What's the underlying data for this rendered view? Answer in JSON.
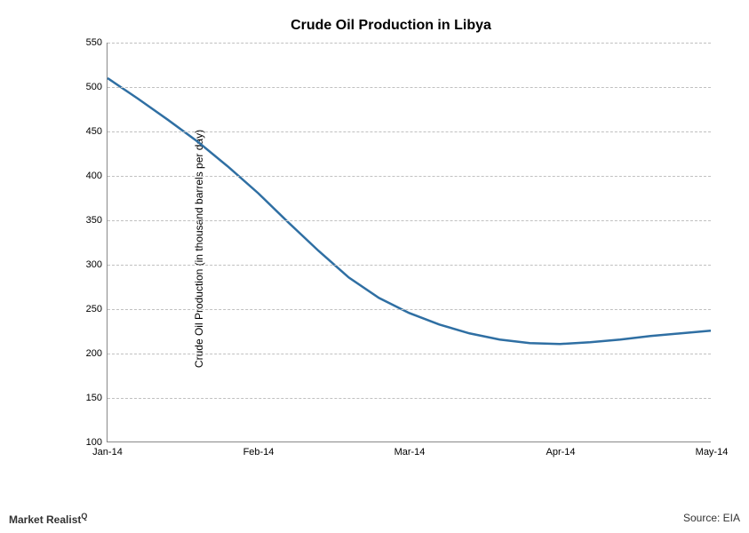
{
  "chart": {
    "type": "line",
    "title": "Crude Oil Production in Libya",
    "y_label": "Crude Oil Production (in thousand barrels per day)",
    "x_ticks": [
      "Jan-14",
      "Feb-14",
      "Mar-14",
      "Apr-14",
      "May-14"
    ],
    "y_min": 100,
    "y_max": 550,
    "y_tick_step": 50,
    "y_ticks": [
      100,
      150,
      200,
      250,
      300,
      350,
      400,
      450,
      500,
      550
    ],
    "series": {
      "color": "#2f6fa3",
      "line_width": 2.5,
      "x_positions": [
        0,
        0.25,
        0.5,
        0.75,
        1.0
      ],
      "values": [
        510,
        380,
        245,
        210,
        225
      ],
      "smooth_points": [
        [
          0.0,
          510
        ],
        [
          0.05,
          487
        ],
        [
          0.1,
          463
        ],
        [
          0.15,
          438
        ],
        [
          0.2,
          410
        ],
        [
          0.25,
          380
        ],
        [
          0.3,
          347
        ],
        [
          0.35,
          315
        ],
        [
          0.4,
          285
        ],
        [
          0.45,
          262
        ],
        [
          0.5,
          245
        ],
        [
          0.55,
          232
        ],
        [
          0.6,
          222
        ],
        [
          0.65,
          215
        ],
        [
          0.7,
          211
        ],
        [
          0.75,
          210
        ],
        [
          0.8,
          212
        ],
        [
          0.85,
          215
        ],
        [
          0.9,
          219
        ],
        [
          0.95,
          222
        ],
        [
          1.0,
          225
        ]
      ]
    },
    "grid_color": "#c0c0c0",
    "axis_color": "#888888",
    "background_color": "#ffffff",
    "title_fontsize": 16,
    "label_fontsize": 12,
    "tick_fontsize": 11
  },
  "footer": {
    "brand": "Market Realist",
    "brand_symbol": "Q",
    "source_label": "Source: EIA"
  }
}
